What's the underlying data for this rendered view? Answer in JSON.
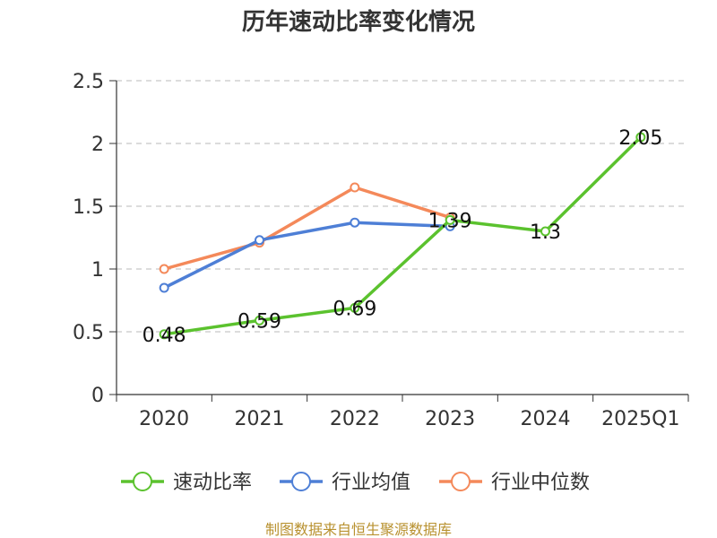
{
  "chart_data": {
    "type": "line",
    "title": "历年速动比率变化情况",
    "categories": [
      "2020",
      "2021",
      "2022",
      "2023",
      "2024",
      "2025Q1"
    ],
    "ylim": [
      0,
      2.5
    ],
    "yticks": [
      "0",
      "0.5",
      "1",
      "1.5",
      "2",
      "2.5"
    ],
    "grid": true,
    "legend_position": "bottom",
    "series": [
      {
        "name": "速动比率",
        "color": "#5bc22e",
        "values": [
          0.48,
          0.59,
          0.69,
          1.39,
          1.3,
          2.05
        ],
        "labels": [
          "0.48",
          "0.59",
          "0.69",
          "1.39",
          "1.3",
          "2.05"
        ]
      },
      {
        "name": "行业均值",
        "color": "#4e7fd6",
        "values": [
          0.85,
          1.23,
          1.37,
          1.34,
          null,
          null
        ]
      },
      {
        "name": "行业中位数",
        "color": "#f4895a",
        "values": [
          1.0,
          1.21,
          1.65,
          1.41,
          null,
          null
        ]
      }
    ],
    "source": "制图数据来自恒生聚源数据库"
  }
}
